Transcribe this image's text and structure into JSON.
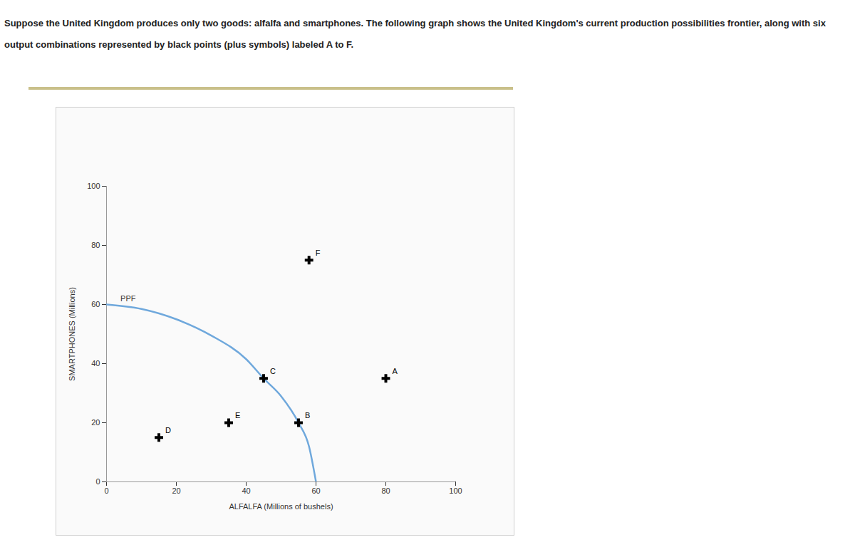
{
  "chart_data": {
    "type": "scatter",
    "title": "Suppose the United Kingdom produces only two goods: alfalfa and smartphones. The following graph shows the United Kingdom's current production possibilities frontier, along with six output combinations represented by black points (plus symbols) labeled A to F.",
    "x_label": "ALFALFA (Millions of bushels)",
    "y_label": "SMARTPHONES (Millions)",
    "xlim": [
      0,
      100
    ],
    "xticks": [
      0,
      20,
      40,
      60,
      80,
      100
    ],
    "ylim": [
      0,
      100
    ],
    "yticks": [
      0,
      20,
      40,
      60,
      80,
      100
    ],
    "grid": false,
    "series": [
      {
        "name": "PPF",
        "type": "line",
        "color": "#6fa8dc",
        "x": [
          0,
          10,
          20,
          30,
          40,
          45,
          50,
          55,
          58,
          60
        ],
        "values": [
          60,
          58.5,
          55,
          49.5,
          41.5,
          35,
          29,
          20,
          12,
          0
        ]
      }
    ],
    "points": {
      "color": "#000000",
      "marker": "plus",
      "labels": [
        "A",
        "B",
        "C",
        "D",
        "E",
        "F"
      ],
      "x": [
        80,
        55,
        45,
        15,
        35,
        58
      ],
      "values": [
        35,
        20,
        35,
        15,
        20,
        75
      ]
    },
    "annotations": [
      {
        "text": "PPF",
        "x": 4,
        "y": 62
      }
    ]
  }
}
